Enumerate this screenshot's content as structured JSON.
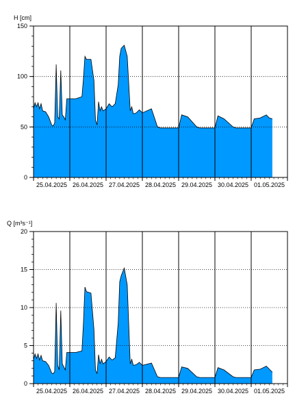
{
  "chart_data": [
    {
      "type": "area",
      "ylabel": "H [cm]",
      "ylim": [
        0,
        150
      ],
      "yticks": [
        0,
        50,
        100,
        150
      ],
      "minor_ystep": 10,
      "xlim": [
        "2025-04-25T00:00",
        "2025-05-02T00:00"
      ],
      "xtick_labels": [
        "25.04.2025",
        "26.04.2025",
        "27.04.2025",
        "28.04.2025",
        "29.04.2025",
        "30.04.2025",
        "01.05.2025"
      ],
      "grid": {
        "vertical": "solid",
        "horizontal": "dotted"
      },
      "fill_color": "#0099FF",
      "line_color": "#000000",
      "series": [
        {
          "x": [
            "2025-04-25T00:00",
            "2025-04-25T01:00",
            "2025-04-25T02:00",
            "2025-04-25T03:00",
            "2025-04-25T04:00",
            "2025-04-25T05:00",
            "2025-04-25T06:00",
            "2025-04-25T08:00",
            "2025-04-25T10:00",
            "2025-04-25T12:00",
            "2025-04-25T13:00",
            "2025-04-25T14:00",
            "2025-04-25T15:00",
            "2025-04-25T16:00",
            "2025-04-25T17:00",
            "2025-04-25T18:00",
            "2025-04-25T19:00",
            "2025-04-25T20:00",
            "2025-04-25T21:00",
            "2025-04-25T22:00",
            "2025-04-26T00:00",
            "2025-04-26T04:00",
            "2025-04-26T08:00",
            "2025-04-26T09:00",
            "2025-04-26T10:00",
            "2025-04-26T11:00",
            "2025-04-26T14:00",
            "2025-04-26T16:00",
            "2025-04-26T17:00",
            "2025-04-26T18:00",
            "2025-04-26T19:00",
            "2025-04-26T20:00",
            "2025-04-26T21:00",
            "2025-04-26T22:00",
            "2025-04-27T00:00",
            "2025-04-27T02:00",
            "2025-04-27T04:00",
            "2025-04-27T06:00",
            "2025-04-27T08:00",
            "2025-04-27T09:00",
            "2025-04-27T10:00",
            "2025-04-27T12:00",
            "2025-04-27T14:00",
            "2025-04-27T16:00",
            "2025-04-27T17:00",
            "2025-04-27T18:00",
            "2025-04-27T20:00",
            "2025-04-27T22:00",
            "2025-04-28T00:00",
            "2025-04-28T06:00",
            "2025-04-28T10:00",
            "2025-04-28T12:00",
            "2025-04-28T14:00",
            "2025-04-29T00:00",
            "2025-04-29T02:00",
            "2025-04-29T06:00",
            "2025-04-29T12:00",
            "2025-04-29T14:00",
            "2025-04-30T00:00",
            "2025-04-30T02:00",
            "2025-04-30T06:00",
            "2025-04-30T12:00",
            "2025-04-30T14:00",
            "2025-05-01T00:00",
            "2025-05-01T02:00",
            "2025-05-01T06:00",
            "2025-05-01T10:00",
            "2025-05-01T12:00",
            "2025-05-01T14:00"
          ],
          "values": [
            68,
            74,
            70,
            74,
            68,
            73,
            66,
            65,
            60,
            52,
            51,
            54,
            112,
            60,
            58,
            106,
            62,
            60,
            57,
            78,
            78,
            78,
            80,
            98,
            120,
            117,
            117,
            96,
            57,
            52,
            75,
            66,
            70,
            66,
            68,
            73,
            70,
            73,
            92,
            120,
            128,
            131,
            120,
            66,
            70,
            63,
            64,
            67,
            64,
            68,
            50,
            49,
            49,
            49,
            62,
            60,
            50,
            49,
            49,
            61,
            58,
            50,
            49,
            49,
            58,
            59,
            62,
            59,
            58
          ]
        }
      ]
    },
    {
      "type": "area",
      "ylabel": "Q [m³s⁻¹]",
      "ylim": [
        0,
        20
      ],
      "yticks": [
        0,
        5,
        10,
        15,
        20
      ],
      "minor_ystep": 1,
      "xlim": [
        "2025-04-25T00:00",
        "2025-05-02T00:00"
      ],
      "xtick_labels": [
        "25.04.2025",
        "26.04.2025",
        "27.04.2025",
        "28.04.2025",
        "29.04.2025",
        "30.04.2025",
        "01.05.2025"
      ],
      "grid": {
        "vertical": "solid",
        "horizontal": "dotted"
      },
      "fill_color": "#0099FF",
      "line_color": "#000000",
      "series": [
        {
          "x": [
            "2025-04-25T00:00",
            "2025-04-25T01:00",
            "2025-04-25T02:00",
            "2025-04-25T03:00",
            "2025-04-25T04:00",
            "2025-04-25T05:00",
            "2025-04-25T06:00",
            "2025-04-25T08:00",
            "2025-04-25T10:00",
            "2025-04-25T12:00",
            "2025-04-25T13:00",
            "2025-04-25T14:00",
            "2025-04-25T15:00",
            "2025-04-25T16:00",
            "2025-04-25T17:00",
            "2025-04-25T18:00",
            "2025-04-25T19:00",
            "2025-04-25T20:00",
            "2025-04-25T21:00",
            "2025-04-25T22:00",
            "2025-04-26T00:00",
            "2025-04-26T04:00",
            "2025-04-26T08:00",
            "2025-04-26T09:00",
            "2025-04-26T10:00",
            "2025-04-26T11:00",
            "2025-04-26T14:00",
            "2025-04-26T16:00",
            "2025-04-26T17:00",
            "2025-04-26T18:00",
            "2025-04-26T19:00",
            "2025-04-26T20:00",
            "2025-04-26T21:00",
            "2025-04-26T22:00",
            "2025-04-27T00:00",
            "2025-04-27T02:00",
            "2025-04-27T04:00",
            "2025-04-27T06:00",
            "2025-04-27T08:00",
            "2025-04-27T09:00",
            "2025-04-27T10:00",
            "2025-04-27T12:00",
            "2025-04-27T14:00",
            "2025-04-27T16:00",
            "2025-04-27T17:00",
            "2025-04-27T18:00",
            "2025-04-27T20:00",
            "2025-04-27T22:00",
            "2025-04-28T00:00",
            "2025-04-28T06:00",
            "2025-04-28T10:00",
            "2025-04-28T12:00",
            "2025-04-28T14:00",
            "2025-04-29T00:00",
            "2025-04-29T02:00",
            "2025-04-29T06:00",
            "2025-04-29T12:00",
            "2025-04-29T14:00",
            "2025-04-30T00:00",
            "2025-04-30T02:00",
            "2025-04-30T06:00",
            "2025-04-30T12:00",
            "2025-04-30T14:00",
            "2025-05-01T00:00",
            "2025-05-01T02:00",
            "2025-05-01T06:00",
            "2025-05-01T10:00",
            "2025-05-01T12:00",
            "2025-05-01T14:00"
          ],
          "values": [
            3.2,
            3.9,
            3.3,
            3.9,
            3.1,
            3.7,
            3.0,
            2.9,
            2.4,
            1.4,
            1.3,
            1.6,
            10.6,
            2.4,
            1.8,
            9.6,
            2.6,
            2.2,
            1.8,
            4.1,
            4.1,
            4.1,
            4.3,
            8.0,
            12.7,
            12.1,
            11.9,
            7.1,
            1.8,
            1.3,
            3.8,
            2.6,
            3.2,
            2.6,
            2.9,
            3.5,
            3.1,
            3.4,
            8.0,
            13.4,
            14.2,
            15.2,
            13.0,
            2.6,
            3.2,
            2.4,
            2.5,
            2.8,
            2.4,
            2.7,
            0.9,
            0.8,
            0.8,
            0.8,
            2.2,
            2.0,
            0.9,
            0.8,
            0.8,
            2.1,
            1.8,
            0.9,
            0.8,
            0.8,
            1.8,
            1.9,
            2.3,
            1.9,
            1.5
          ]
        }
      ]
    }
  ]
}
